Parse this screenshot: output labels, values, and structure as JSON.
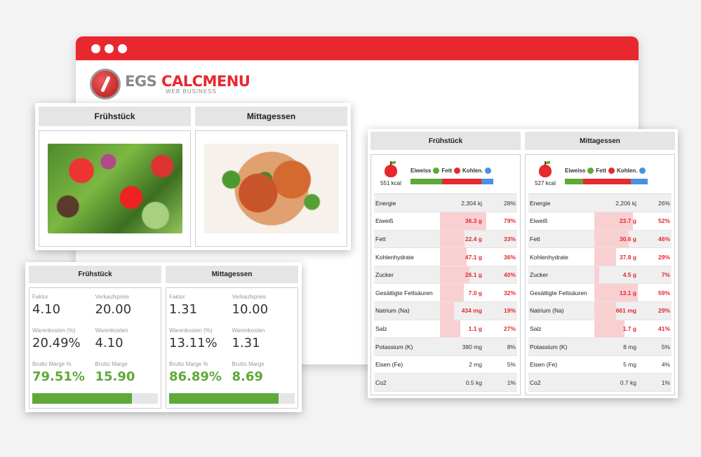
{
  "window": {
    "accent": "#e8282e"
  },
  "logo": {
    "part1": "EGS ",
    "part2": "CALCMENU",
    "sub": "WEB BUSINESS"
  },
  "meals": [
    {
      "title": "Frühstück",
      "image": "salad"
    },
    {
      "title": "Mittagessen",
      "image": "stew"
    }
  ],
  "cost": [
    {
      "title": "Frühstück",
      "faktor_label": "Faktor",
      "faktor": "4.10",
      "vk_label": "Verkaufspreis",
      "vk": "20.00",
      "wk_pct_label": "Warenkosten (%)",
      "wk_pct": "20.49%",
      "wk_label": "Warenkosten",
      "wk": "4.10",
      "bm_pct_label": "Brutto Marge %",
      "bm_pct": "79.51%",
      "bm_label": "Brutto Marge",
      "bm": "15.90",
      "progress": 0.795
    },
    {
      "title": "Mittagessen",
      "faktor_label": "Faktor",
      "faktor": "1.31",
      "vk_label": "Verkaufspreis",
      "vk": "10.00",
      "wk_pct_label": "Warenkosten (%)",
      "wk_pct": "13.11%",
      "wk_label": "Warenkosten",
      "wk": "1.31",
      "bm_pct_label": "Brutto Marge %",
      "bm_pct": "86.89%",
      "bm_label": "Brutto Marge",
      "bm": "8.69",
      "progress": 0.869
    }
  ],
  "nutrition": [
    {
      "title": "Frühstück",
      "kcal": "551 kcal",
      "legend": {
        "protein": "Eiweiss",
        "fat": "Fett",
        "carbs": "Kohlen."
      },
      "macro_split": {
        "protein": 0.38,
        "fat": 0.48,
        "carbs": 0.14
      },
      "rows": [
        {
          "name": "Energie",
          "amount": "2,304 kj",
          "pct": "28%",
          "hi": false,
          "level": 0
        },
        {
          "name": "Eiweiß",
          "amount": "36.3 g",
          "pct": "79%",
          "hi": true,
          "level": 0.79
        },
        {
          "name": "Fett",
          "amount": "22.4 g",
          "pct": "33%",
          "hi": true,
          "level": 0.33
        },
        {
          "name": "Kohlenhydrate",
          "amount": "47.1 g",
          "pct": "36%",
          "hi": true,
          "level": 0.36
        },
        {
          "name": "Zucker",
          "amount": "26.1 g",
          "pct": "40%",
          "hi": true,
          "level": 0.4
        },
        {
          "name": "Gesättigte Fettsäuren",
          "amount": "7.0 g",
          "pct": "32%",
          "hi": true,
          "level": 0.32
        },
        {
          "name": "Natrium (Na)",
          "amount": "434 mg",
          "pct": "19%",
          "hi": true,
          "level": 0.19
        },
        {
          "name": "Salz",
          "amount": "1.1 g",
          "pct": "27%",
          "hi": true,
          "level": 0.27
        },
        {
          "name": "Potassium (K)",
          "amount": "380 mg",
          "pct": "8%",
          "hi": false,
          "level": 0
        },
        {
          "name": "Eisen (Fe)",
          "amount": "2 mg",
          "pct": "5%",
          "hi": false,
          "level": 0
        },
        {
          "name": "Co2",
          "amount": "0.5 kg",
          "pct": "1%",
          "hi": false,
          "level": 0
        }
      ]
    },
    {
      "title": "Mittagessen",
      "kcal": "527 kcal",
      "legend": {
        "protein": "Eiweiss",
        "fat": "Fett",
        "carbs": "Kohlen."
      },
      "macro_split": {
        "protein": 0.22,
        "fat": 0.58,
        "carbs": 0.2
      },
      "rows": [
        {
          "name": "Energie",
          "amount": "2,206 kj",
          "pct": "26%",
          "hi": false,
          "level": 0
        },
        {
          "name": "Eiweiß",
          "amount": "23.7 g",
          "pct": "52%",
          "hi": true,
          "level": 0.52
        },
        {
          "name": "Fett",
          "amount": "30.6 g",
          "pct": "46%",
          "hi": true,
          "level": 0.46
        },
        {
          "name": "Kohlenhydrate",
          "amount": "37.8 g",
          "pct": "29%",
          "hi": true,
          "level": 0.29
        },
        {
          "name": "Zucker",
          "amount": "4.5 g",
          "pct": "7%",
          "hi": true,
          "level": 0.07
        },
        {
          "name": "Gesättigte Fettsäuren",
          "amount": "13.1 g",
          "pct": "59%",
          "hi": true,
          "level": 0.59
        },
        {
          "name": "Natrium (Na)",
          "amount": "661 mg",
          "pct": "29%",
          "hi": true,
          "level": 0.29
        },
        {
          "name": "Salz",
          "amount": "1.7 g",
          "pct": "41%",
          "hi": true,
          "level": 0.41
        },
        {
          "name": "Potassium (K)",
          "amount": "8 mg",
          "pct": "5%",
          "hi": false,
          "level": 0
        },
        {
          "name": "Eisen (Fe)",
          "amount": "5 mg",
          "pct": "4%",
          "hi": false,
          "level": 0
        },
        {
          "name": "Co2",
          "amount": "0.7 kg",
          "pct": "1%",
          "hi": false,
          "level": 0
        }
      ]
    }
  ],
  "colors": {
    "protein": "#5fa83a",
    "fat": "#e8282e",
    "carbs": "#4a90e2",
    "margin": "#5fa83a"
  }
}
